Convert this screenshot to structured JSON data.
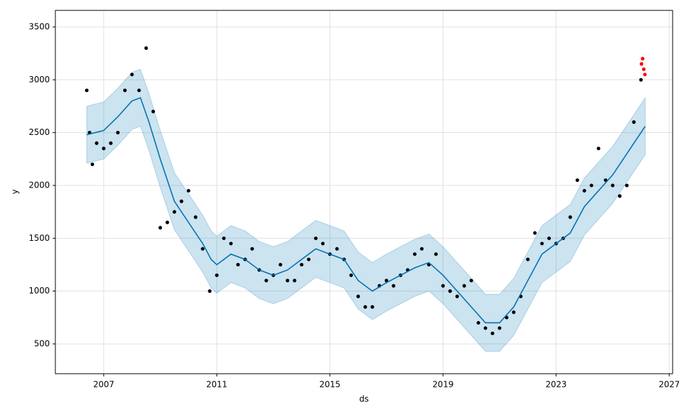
{
  "chart_data": {
    "type": "forecast",
    "x_label": "ds",
    "y_label": "y",
    "xlim": [
      2005.29,
      2027.12
    ],
    "xticks": [
      2007,
      2011,
      2015,
      2019,
      2023,
      2027
    ],
    "ylim": [
      218,
      3657
    ],
    "yticks": [
      500,
      1000,
      1500,
      2000,
      2500,
      3000,
      3500
    ],
    "grid": true,
    "observed": {
      "color": "#000000",
      "x": [
        2006.4,
        2006.5,
        2006.6,
        2006.75,
        2007.0,
        2007.25,
        2007.5,
        2007.75,
        2008.0,
        2008.25,
        2008.5,
        2008.75,
        2009.0,
        2009.25,
        2009.5,
        2009.75,
        2010.0,
        2010.25,
        2010.5,
        2010.75,
        2011.0,
        2011.25,
        2011.5,
        2011.75,
        2012.0,
        2012.25,
        2012.5,
        2012.75,
        2013.0,
        2013.25,
        2013.5,
        2013.75,
        2014.0,
        2014.25,
        2014.5,
        2014.75,
        2015.0,
        2015.25,
        2015.5,
        2015.75,
        2016.0,
        2016.25,
        2016.5,
        2016.75,
        2017.0,
        2017.25,
        2017.5,
        2017.75,
        2018.0,
        2018.25,
        2018.5,
        2018.75,
        2019.0,
        2019.25,
        2019.5,
        2019.75,
        2020.0,
        2020.25,
        2020.5,
        2020.75,
        2021.0,
        2021.25,
        2021.5,
        2021.75,
        2022.0,
        2022.25,
        2022.5,
        2022.75,
        2023.0,
        2023.25,
        2023.5,
        2023.75,
        2024.0,
        2024.25,
        2024.5,
        2024.75,
        2025.0,
        2025.25,
        2025.5,
        2025.75,
        2026.0
      ],
      "values": [
        2900,
        2500,
        2200,
        2400,
        2350,
        2400,
        2500,
        2900,
        3050,
        2900,
        3300,
        2700,
        1600,
        1650,
        1750,
        1850,
        1950,
        1700,
        1400,
        1000,
        1150,
        1500,
        1450,
        1250,
        1300,
        1400,
        1200,
        1100,
        1150,
        1250,
        1100,
        1100,
        1250,
        1300,
        1500,
        1450,
        1350,
        1400,
        1300,
        1150,
        950,
        850,
        850,
        1050,
        1100,
        1050,
        1150,
        1200,
        1350,
        1400,
        1250,
        1350,
        1050,
        1000,
        950,
        1050,
        1100,
        700,
        650,
        600,
        650,
        750,
        800,
        950,
        1300,
        1550,
        1450,
        1500,
        1450,
        1500,
        1700,
        2050,
        1950,
        2000,
        2350,
        2050,
        2000,
        1900,
        2000,
        2600,
        3000
      ]
    },
    "recent": {
      "color": "#ff0000",
      "x": [
        2026.02,
        2026.06,
        2026.1,
        2026.14
      ],
      "values": [
        3150,
        3200,
        3100,
        3050
      ]
    },
    "forecast": {
      "color": "#0072b2",
      "band_color": "#0072b2",
      "x": [
        2006.4,
        2007,
        2007.5,
        2008,
        2008.3,
        2008.6,
        2009,
        2009.5,
        2010,
        2010.5,
        2010.8,
        2011,
        2011.5,
        2012,
        2012.5,
        2013,
        2013.5,
        2014,
        2014.5,
        2015,
        2015.5,
        2016,
        2016.5,
        2017,
        2017.5,
        2018,
        2018.5,
        2019,
        2019.5,
        2020,
        2020.5,
        2021,
        2021.5,
        2022,
        2022.5,
        2023,
        2023.5,
        2024,
        2024.5,
        2025,
        2025.5,
        2026,
        2026.15
      ],
      "yhat": [
        2480,
        2520,
        2650,
        2800,
        2830,
        2600,
        2250,
        1850,
        1650,
        1450,
        1300,
        1250,
        1350,
        1300,
        1200,
        1150,
        1200,
        1300,
        1400,
        1350,
        1300,
        1100,
        1000,
        1080,
        1150,
        1220,
        1270,
        1150,
        1000,
        850,
        700,
        700,
        850,
        1100,
        1350,
        1450,
        1550,
        1800,
        1950,
        2100,
        2300,
        2500,
        2560
      ],
      "lower": [
        2210,
        2250,
        2380,
        2530,
        2560,
        2330,
        1980,
        1580,
        1380,
        1180,
        1030,
        980,
        1080,
        1030,
        930,
        880,
        930,
        1030,
        1130,
        1080,
        1030,
        830,
        730,
        810,
        880,
        950,
        1000,
        880,
        730,
        580,
        430,
        430,
        580,
        830,
        1080,
        1180,
        1280,
        1530,
        1680,
        1830,
        2030,
        2230,
        2290
      ],
      "upper": [
        2750,
        2790,
        2920,
        3070,
        3100,
        2870,
        2520,
        2120,
        1920,
        1720,
        1570,
        1520,
        1620,
        1570,
        1470,
        1420,
        1470,
        1570,
        1670,
        1620,
        1570,
        1370,
        1270,
        1350,
        1420,
        1490,
        1540,
        1420,
        1270,
        1120,
        970,
        970,
        1120,
        1370,
        1620,
        1720,
        1820,
        2070,
        2220,
        2370,
        2570,
        2770,
        2830
      ]
    }
  }
}
